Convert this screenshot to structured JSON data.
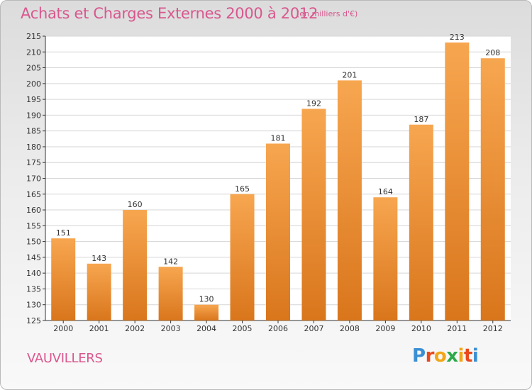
{
  "title": "Achats et Charges Externes 2000 à 2012",
  "subtitle": "(en milliers d'€)",
  "commune": "VAUVILLERS",
  "logo": {
    "letters": [
      "P",
      "r",
      "o",
      "x",
      "i",
      "t",
      "i"
    ],
    "colors": [
      "#3a8fd3",
      "#e8481c",
      "#f2a516",
      "#2ea84a",
      "#f2a516",
      "#e8481c",
      "#3a8fd3"
    ]
  },
  "colors": {
    "bar_top": "#f7a650",
    "bar_bottom": "#d9761c",
    "text_accent": "#d9578e"
  },
  "chart_data": {
    "type": "bar",
    "categories": [
      "2000",
      "2001",
      "2002",
      "2003",
      "2004",
      "2005",
      "2006",
      "2007",
      "2008",
      "2009",
      "2010",
      "2011",
      "2012"
    ],
    "values": [
      151,
      143,
      160,
      142,
      130,
      165,
      181,
      192,
      201,
      164,
      187,
      213,
      208
    ],
    "ylim": [
      125,
      215
    ],
    "yticks": [
      125,
      130,
      135,
      140,
      145,
      150,
      155,
      160,
      165,
      170,
      175,
      180,
      185,
      190,
      195,
      200,
      205,
      210,
      215
    ],
    "grid": "horizontal",
    "data_labels": true
  }
}
